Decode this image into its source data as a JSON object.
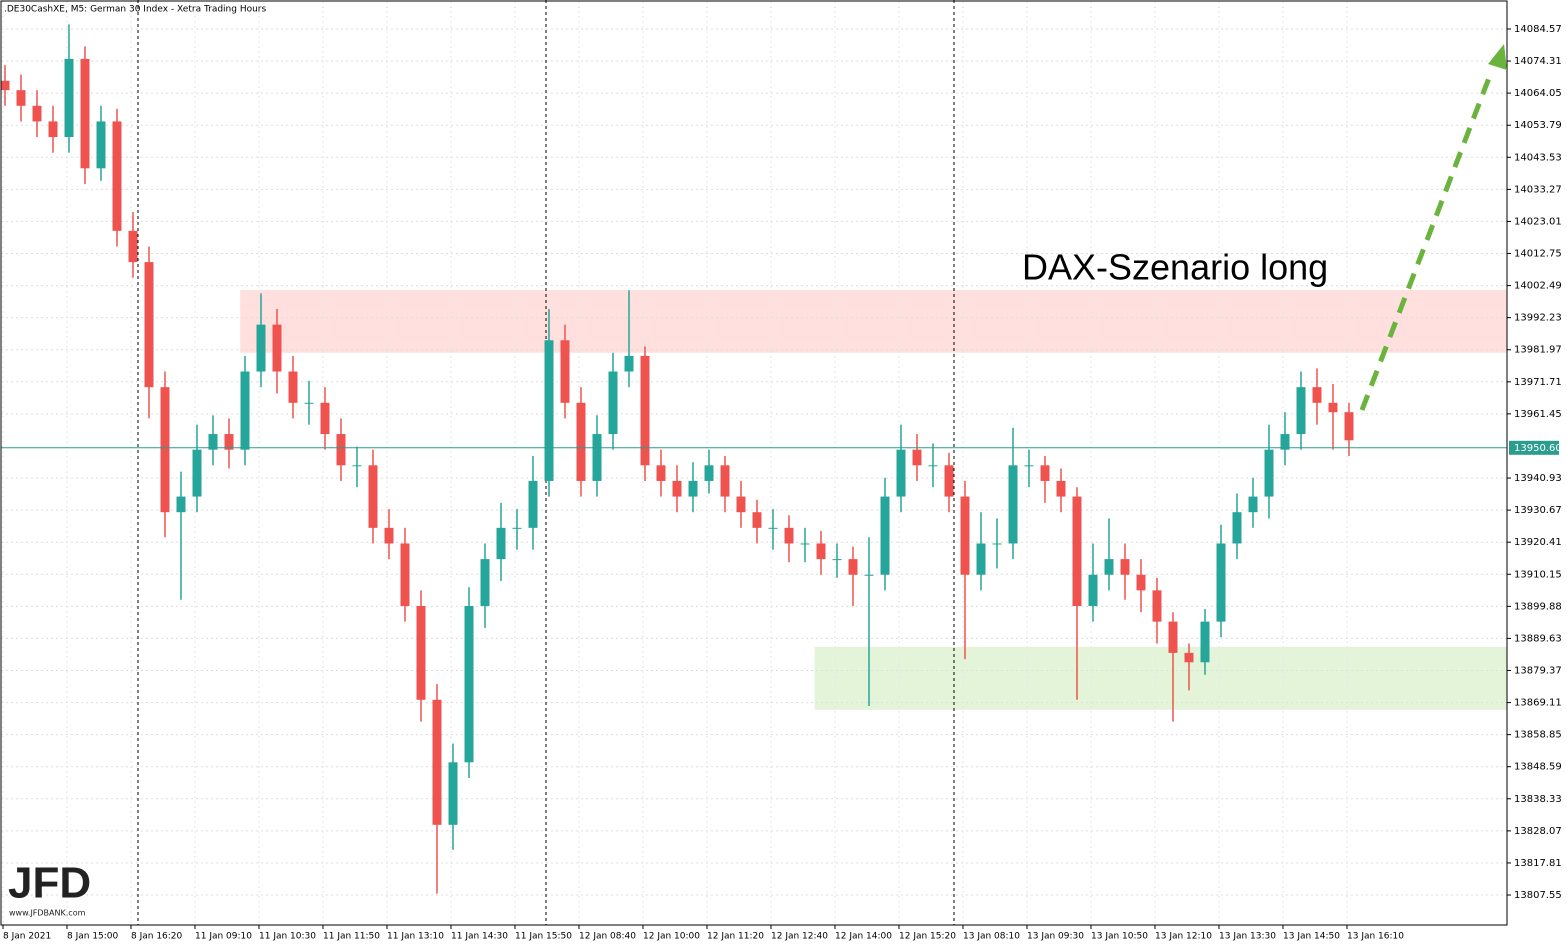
{
  "chart_data": {
    "type": "candlestick",
    "title": ".DE30CashXE, M5:  German 30 Index  - Xetra Trading Hours",
    "annotation": "DAX-Szenario long",
    "logo": "JFD",
    "logo_url": "www.JFDBANK.com",
    "categories": [
      "8 Jan 2021",
      null,
      null,
      null,
      "8 Jan 15:00",
      null,
      null,
      null,
      "8 Jan 16:20",
      null,
      null,
      null,
      "11 Jan 09:10",
      null,
      null,
      null,
      "11 Jan 10:30",
      null,
      null,
      null,
      "11 Jan 11:50",
      null,
      null,
      null,
      "11 Jan 13:10",
      null,
      null,
      null,
      "11 Jan 14:30",
      null,
      null,
      null,
      "11 Jan 15:50",
      null,
      null,
      null,
      "12 Jan 08:40",
      null,
      null,
      null,
      "12 Jan 10:00",
      null,
      null,
      null,
      "12 Jan 11:20",
      null,
      null,
      null,
      "12 Jan 12:40",
      null,
      null,
      null,
      "12 Jan 14:00",
      null,
      null,
      null,
      "12 Jan 15:20",
      null,
      null,
      null,
      "13 Jan 08:10",
      null,
      null,
      null,
      "13 Jan 09:30",
      null,
      null,
      null,
      "13 Jan 10:50",
      null,
      null,
      null,
      "13 Jan 12:10",
      null,
      null,
      null,
      "13 Jan 13:30",
      null,
      null,
      null,
      "13 Jan 14:50",
      null,
      null,
      null,
      "13 Jan 16:10"
    ],
    "open": [
      14068,
      14065,
      14060,
      14055,
      14050,
      14075,
      14040,
      14055,
      14020,
      14010,
      13970,
      13930,
      13935,
      13950,
      13955,
      13950,
      13975,
      13990,
      13975,
      13965,
      13965,
      13955,
      13945,
      13945,
      13925,
      13920,
      13900,
      13870,
      13830,
      13850,
      13900,
      13915,
      13925,
      13925,
      13940,
      13985,
      13965,
      13940,
      13955,
      13975,
      13980,
      13945,
      13940,
      13935,
      13940,
      13945,
      13935,
      13930,
      13925,
      13925,
      13920,
      13920,
      13915,
      13915,
      13910,
      13910,
      13935,
      13950,
      13945,
      13945,
      13935,
      13910,
      13920,
      13920,
      13945,
      13945,
      13940,
      13935,
      13900,
      13910,
      13915,
      13910,
      13905,
      13895,
      13885,
      13882,
      13895,
      13920,
      13930,
      13935,
      13950,
      13955,
      13970,
      13965,
      13962
    ],
    "high": [
      14073,
      14070,
      14065,
      14060,
      14086,
      14079,
      14060,
      14059,
      14026,
      14015,
      13975,
      13943,
      13958,
      13961,
      13960,
      13980,
      14000,
      13995,
      13980,
      13972,
      13970,
      13960,
      13951,
      13950,
      13931,
      13925,
      13905,
      13875,
      13856,
      13906,
      13920,
      13933,
      13931,
      13948,
      13995,
      13990,
      13970,
      13961,
      13981,
      14001,
      13983,
      13950,
      13945,
      13946,
      13950,
      13948,
      13940,
      13934,
      13931,
      13929,
      13925,
      13924,
      13920,
      13919,
      13922,
      13941,
      13958,
      13955,
      13952,
      13949,
      13940,
      13930,
      13928,
      13957,
      13950,
      13948,
      13944,
      13938,
      13920,
      13928,
      13920,
      13915,
      13909,
      13898,
      13888,
      13899,
      13926,
      13936,
      13941,
      13958,
      13962,
      13975,
      13976,
      13971,
      13965
    ],
    "low": [
      14060,
      14055,
      14050,
      14045,
      14045,
      14035,
      14036,
      14015,
      14005,
      13960,
      13922,
      13902,
      13930,
      13945,
      13944,
      13945,
      13970,
      13968,
      13960,
      13958,
      13950,
      13940,
      13938,
      13920,
      13915,
      13895,
      13863,
      13808,
      13822,
      13845,
      13893,
      13908,
      13918,
      13918,
      13935,
      13960,
      13935,
      13935,
      13950,
      13970,
      13940,
      13935,
      13930,
      13930,
      13936,
      13930,
      13925,
      13920,
      13918,
      13914,
      13914,
      13910,
      13909,
      13900,
      13868,
      13905,
      13930,
      13940,
      13938,
      13930,
      13883,
      13905,
      13912,
      13915,
      13938,
      13933,
      13930,
      13870,
      13895,
      13905,
      13902,
      13898,
      13888,
      13863,
      13873,
      13878,
      13890,
      13915,
      13925,
      13928,
      13945,
      13950,
      13958,
      13950,
      13948
    ],
    "close": [
      14065,
      14060,
      14055,
      14050,
      14075,
      14040,
      14055,
      14020,
      14010,
      13970,
      13930,
      13935,
      13950,
      13955,
      13950,
      13975,
      13990,
      13975,
      13965,
      13965,
      13955,
      13945,
      13945,
      13925,
      13920,
      13900,
      13870,
      13830,
      13850,
      13900,
      13915,
      13925,
      13925,
      13940,
      13985,
      13965,
      13940,
      13955,
      13975,
      13980,
      13945,
      13940,
      13935,
      13940,
      13945,
      13935,
      13930,
      13925,
      13925,
      13920,
      13920,
      13915,
      13915,
      13910,
      13910,
      13935,
      13950,
      13945,
      13945,
      13935,
      13910,
      13920,
      13920,
      13945,
      13945,
      13940,
      13935,
      13900,
      13910,
      13915,
      13910,
      13905,
      13895,
      13885,
      13882,
      13895,
      13920,
      13930,
      13935,
      13950,
      13955,
      13970,
      13965,
      13962,
      13953
    ],
    "up_color": "#26a69a",
    "down_color": "#ef5350",
    "zones": [
      {
        "color": "#ffe0de",
        "x_start": 14.7,
        "low": 13981.0,
        "high": 14001.1
      },
      {
        "color": "#e3f4d9",
        "x_start": 50.6,
        "low": 13866.8,
        "high": 13886.9
      }
    ],
    "current_price": {
      "value": 13950.6,
      "label": "13950.60"
    },
    "ylim": [
      13797.96,
      14093.84
    ],
    "yticks": [
      13807.55,
      13817.81,
      13828.07,
      13838.33,
      13848.59,
      13858.85,
      13869.11,
      13879.37,
      13889.63,
      13899.88,
      13910.15,
      13920.41,
      13930.67,
      13940.93,
      13961.45,
      13971.71,
      13981.97,
      13992.23,
      14002.49,
      14012.75,
      14023.01,
      14033.27,
      14043.53,
      14053.79,
      14064.05,
      14074.31,
      14084.57
    ],
    "grid": true
  }
}
